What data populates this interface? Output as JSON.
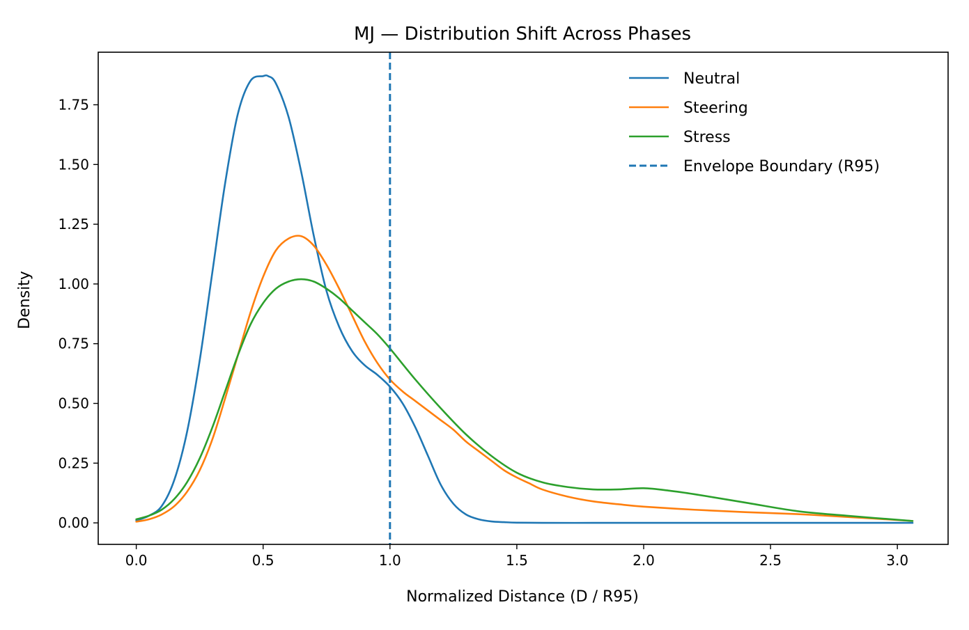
{
  "chart_data": {
    "type": "line",
    "title": "MJ — Distribution Shift Across Phases",
    "xlabel": "Normalized Distance (D / R95)",
    "ylabel": "Density",
    "xlim": [
      -0.15,
      3.2
    ],
    "ylim": [
      -0.09,
      1.97
    ],
    "xticks": [
      0.0,
      0.5,
      1.0,
      1.5,
      2.0,
      2.5,
      3.0
    ],
    "xtick_labels": [
      "0.0",
      "0.5",
      "1.0",
      "1.5",
      "2.0",
      "2.5",
      "3.0"
    ],
    "yticks": [
      0.0,
      0.25,
      0.5,
      0.75,
      1.0,
      1.25,
      1.5,
      1.75
    ],
    "ytick_labels": [
      "0.00",
      "0.25",
      "0.50",
      "0.75",
      "1.00",
      "1.25",
      "1.50",
      "1.75"
    ],
    "grid": false,
    "legend_position": "top-right",
    "series": [
      {
        "name": "Neutral",
        "color": "#1f77b4",
        "x": [
          0.0,
          0.05,
          0.1,
          0.15,
          0.2,
          0.25,
          0.3,
          0.35,
          0.4,
          0.45,
          0.5,
          0.52,
          0.55,
          0.6,
          0.65,
          0.7,
          0.75,
          0.8,
          0.85,
          0.9,
          0.95,
          1.0,
          1.05,
          1.1,
          1.15,
          1.2,
          1.25,
          1.3,
          1.35,
          1.4,
          1.45,
          1.5,
          1.6,
          1.8,
          2.0,
          2.5,
          3.06
        ],
        "y": [
          0.01,
          0.03,
          0.07,
          0.18,
          0.38,
          0.68,
          1.05,
          1.42,
          1.71,
          1.85,
          1.87,
          1.87,
          1.84,
          1.7,
          1.47,
          1.2,
          0.97,
          0.82,
          0.72,
          0.66,
          0.62,
          0.57,
          0.5,
          0.4,
          0.28,
          0.16,
          0.08,
          0.035,
          0.015,
          0.006,
          0.003,
          0.001,
          0.0,
          0.0,
          0.0,
          0.0,
          0.0
        ]
      },
      {
        "name": "Steering",
        "color": "#ff7f0e",
        "x": [
          0.0,
          0.05,
          0.1,
          0.15,
          0.2,
          0.25,
          0.3,
          0.35,
          0.4,
          0.45,
          0.5,
          0.55,
          0.6,
          0.65,
          0.7,
          0.75,
          0.8,
          0.85,
          0.9,
          0.95,
          1.0,
          1.05,
          1.1,
          1.15,
          1.2,
          1.25,
          1.3,
          1.35,
          1.4,
          1.45,
          1.5,
          1.55,
          1.6,
          1.7,
          1.8,
          1.9,
          2.0,
          2.2,
          2.4,
          2.6,
          2.8,
          3.06
        ],
        "y": [
          0.005,
          0.015,
          0.035,
          0.07,
          0.13,
          0.22,
          0.35,
          0.52,
          0.7,
          0.88,
          1.03,
          1.14,
          1.19,
          1.2,
          1.16,
          1.08,
          0.98,
          0.87,
          0.76,
          0.67,
          0.6,
          0.55,
          0.51,
          0.47,
          0.43,
          0.39,
          0.34,
          0.3,
          0.26,
          0.22,
          0.19,
          0.165,
          0.14,
          0.11,
          0.09,
          0.078,
          0.068,
          0.055,
          0.045,
          0.037,
          0.025,
          0.008
        ]
      },
      {
        "name": "Stress",
        "color": "#2ca02c",
        "x": [
          0.0,
          0.05,
          0.1,
          0.15,
          0.2,
          0.25,
          0.3,
          0.35,
          0.4,
          0.45,
          0.5,
          0.55,
          0.6,
          0.65,
          0.7,
          0.75,
          0.8,
          0.85,
          0.9,
          0.95,
          1.0,
          1.1,
          1.2,
          1.3,
          1.4,
          1.5,
          1.6,
          1.7,
          1.8,
          1.9,
          2.0,
          2.1,
          2.2,
          2.4,
          2.6,
          2.8,
          3.06
        ],
        "y": [
          0.015,
          0.03,
          0.055,
          0.1,
          0.17,
          0.27,
          0.4,
          0.55,
          0.7,
          0.83,
          0.92,
          0.98,
          1.01,
          1.02,
          1.01,
          0.98,
          0.94,
          0.89,
          0.84,
          0.79,
          0.73,
          0.6,
          0.48,
          0.37,
          0.28,
          0.21,
          0.17,
          0.15,
          0.14,
          0.14,
          0.145,
          0.135,
          0.12,
          0.085,
          0.05,
          0.03,
          0.008
        ]
      }
    ],
    "reference_lines": [
      {
        "name": "Envelope Boundary (R95)",
        "type": "vertical",
        "x": 1.0,
        "color": "#1f77b4",
        "style": "dashed"
      }
    ]
  }
}
